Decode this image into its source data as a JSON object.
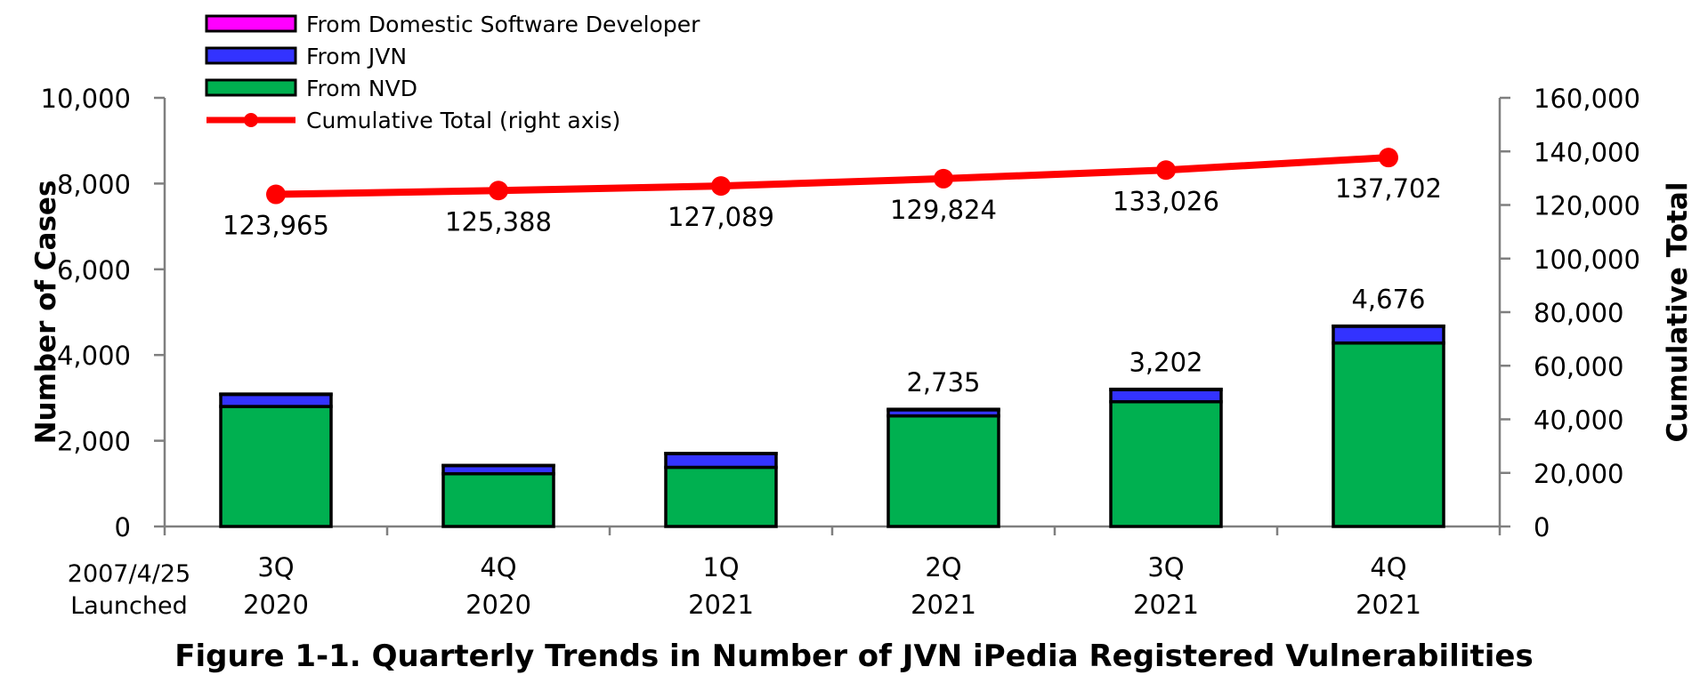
{
  "caption": "Figure 1-1. Quarterly Trends in Number of JVN iPedia Registered Vulnerabilities",
  "launch_note": [
    "2007/4/25",
    "Launched"
  ],
  "chart_data": {
    "type": "bar",
    "stacked": true,
    "title": "",
    "ylabel": "Number of Cases",
    "y2label": "Cumulative Total",
    "ylim": [
      0,
      10000
    ],
    "y2lim": [
      0,
      160000
    ],
    "yticks": [
      0,
      2000,
      4000,
      6000,
      8000,
      10000
    ],
    "yticklabels": [
      "0",
      "2,000",
      "4,000",
      "6,000",
      "8,000",
      "10,000"
    ],
    "y2ticks": [
      0,
      20000,
      40000,
      60000,
      80000,
      100000,
      120000,
      140000,
      160000
    ],
    "y2ticklabels": [
      "0",
      "20,000",
      "40,000",
      "60,000",
      "80,000",
      "100,000",
      "120,000",
      "140,000",
      "160,000"
    ],
    "categories": [
      [
        "3Q",
        "2020"
      ],
      [
        "4Q",
        "2020"
      ],
      [
        "1Q",
        "2021"
      ],
      [
        "2Q",
        "2021"
      ],
      [
        "3Q",
        "2021"
      ],
      [
        "4Q",
        "2021"
      ]
    ],
    "legend_position": "top-left",
    "series": [
      {
        "name": "From NVD",
        "kind": "bar",
        "color": "#00b050",
        "values": [
          2800,
          1230,
          1380,
          2580,
          2910,
          4280
        ]
      },
      {
        "name": "From JVN",
        "kind": "bar",
        "color": "#3333ff",
        "values": [
          280,
          190,
          320,
          140,
          280,
          390
        ]
      },
      {
        "name": "From Domestic Software Developer",
        "kind": "bar",
        "color": "#ff00ff",
        "values": [
          10,
          5,
          5,
          15,
          12,
          6
        ]
      },
      {
        "name": "Cumulative Total (right axis)",
        "kind": "line",
        "axis": "right",
        "color": "#ff0000",
        "values": [
          123965,
          125388,
          127089,
          129824,
          133026,
          137702
        ]
      }
    ],
    "cumulative_labels": [
      "123,965",
      "125,388",
      "127,089",
      "129,824",
      "133,026",
      "137,702"
    ],
    "bar_total_labels": [
      "",
      "",
      "",
      "2,735",
      "3,202",
      "4,676"
    ],
    "legend_order": [
      "From Domestic Software Developer",
      "From JVN",
      "From NVD",
      "Cumulative Total (right axis)"
    ]
  }
}
